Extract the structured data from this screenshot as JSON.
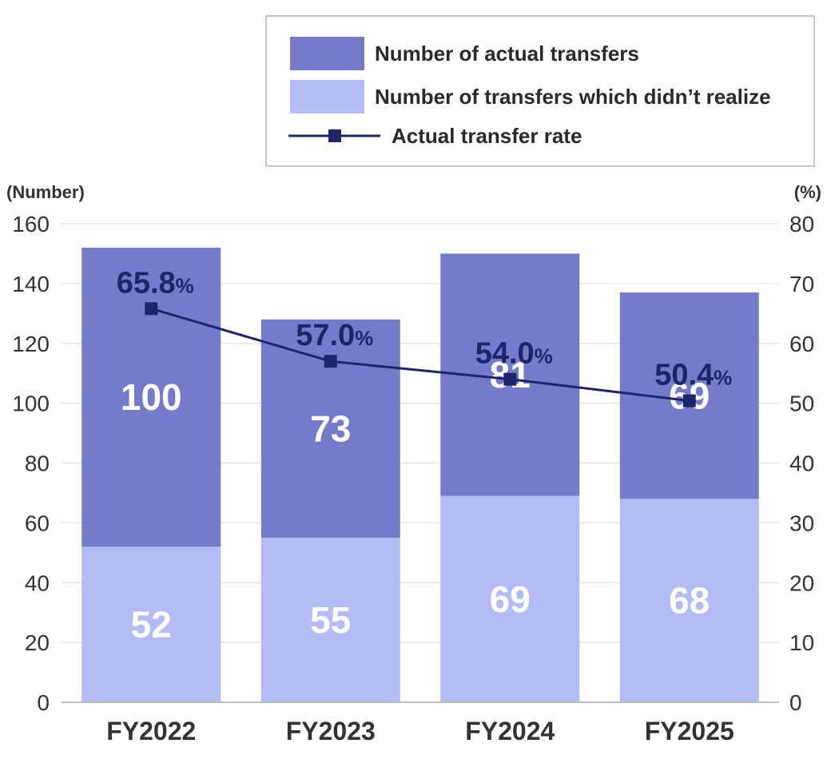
{
  "chart_data": {
    "type": "bar",
    "stacked": true,
    "categories": [
      "FY2022",
      "FY2023",
      "FY2024",
      "FY2025"
    ],
    "series": [
      {
        "name": "Number of transfers which didn’t realize",
        "values": [
          52,
          55,
          69,
          68
        ],
        "color": "#b3bcf5"
      },
      {
        "name": "Number of actual transfers",
        "values": [
          100,
          73,
          81,
          69
        ],
        "color": "#737bca"
      }
    ],
    "line_series": {
      "name": "Actual transfer rate",
      "values": [
        65.8,
        57.0,
        54.0,
        50.4
      ],
      "labels": [
        "65.8",
        "57.0",
        "54.0",
        "50.4"
      ],
      "unit_suffix": "%",
      "axis": "right",
      "color": "#1e2469"
    },
    "left_axis": {
      "label": "(Number)",
      "ylim": [
        0,
        160
      ],
      "ticks": [
        "0",
        "20",
        "40",
        "60",
        "80",
        "100",
        "120",
        "140",
        "160"
      ]
    },
    "right_axis": {
      "label": "(%)",
      "ylim": [
        0,
        80
      ],
      "ticks": [
        "0",
        "10",
        "20",
        "30",
        "40",
        "50",
        "60",
        "70",
        "80"
      ]
    },
    "legend": {
      "placement": "top-right",
      "items": [
        {
          "label": "Number of actual transfers",
          "kind": "box",
          "color": "#737bca"
        },
        {
          "label": "Number of transfers which didn’t realize",
          "kind": "box",
          "color": "#b3bcf5"
        },
        {
          "label": "Actual transfer rate",
          "kind": "line",
          "color": "#1e2469"
        }
      ]
    },
    "grid": true,
    "gridColor": "#e6e6e6"
  }
}
